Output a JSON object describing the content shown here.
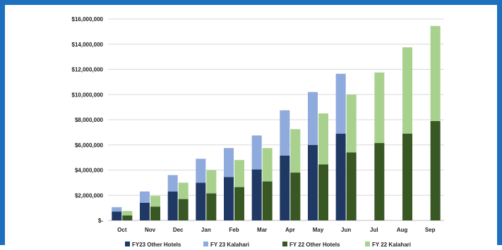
{
  "chart_data": {
    "type": "bar",
    "stacked": true,
    "categories": [
      "Oct",
      "Nov",
      "Dec",
      "Jan",
      "Feb",
      "Mar",
      "Apr",
      "May",
      "Jun",
      "Jul",
      "Aug",
      "Sep"
    ],
    "ylim": [
      0,
      16000000
    ],
    "yticks": [
      0,
      2000000,
      4000000,
      6000000,
      8000000,
      10000000,
      12000000,
      14000000,
      16000000
    ],
    "ytick_labels": [
      "$-",
      "$2,000,000",
      "$4,000,000",
      "$6,000,000",
      "$8,000,000",
      "$10,000,000",
      "$12,000,000",
      "$14,000,000",
      "$16,000,000"
    ],
    "grid": true,
    "legend_position": "bottom",
    "groups": [
      {
        "name": "FY23",
        "series": [
          {
            "name": "FY23 Other Hotels",
            "color": "#203864",
            "values": [
              700000,
              1400000,
              2300000,
              3000000,
              3450000,
              4050000,
              5150000,
              6000000,
              6900000,
              null,
              null,
              null
            ]
          },
          {
            "name": "FY 23 Kalahari",
            "color": "#8faadc",
            "values": [
              350000,
              900000,
              1300000,
              1900000,
              2300000,
              2700000,
              3600000,
              4200000,
              4750000,
              null,
              null,
              null
            ]
          }
        ]
      },
      {
        "name": "FY22",
        "series": [
          {
            "name": "FY 22 Other Hotels",
            "color": "#385723",
            "values": [
              400000,
              1100000,
              1700000,
              2150000,
              2650000,
              3100000,
              3800000,
              4450000,
              5400000,
              6150000,
              6900000,
              7900000
            ]
          },
          {
            "name": "FY 22 Kalahari",
            "color": "#a9d18e",
            "values": [
              350000,
              850000,
              1300000,
              1850000,
              2150000,
              2650000,
              3450000,
              4050000,
              4600000,
              5600000,
              6850000,
              7550000
            ]
          }
        ]
      }
    ]
  }
}
